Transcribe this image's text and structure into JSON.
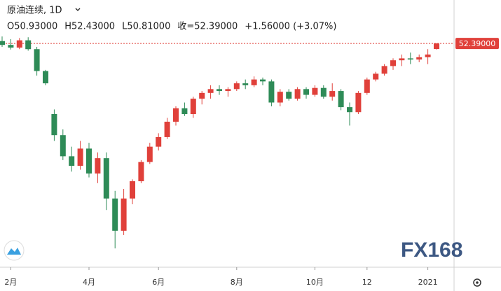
{
  "chart_data": {
    "type": "candlestick",
    "title": "原油连续, 1D",
    "header_values": [
      "O50.93000",
      "H52.43000",
      "L50.81000",
      "收=52.39000",
      "+1.56000 (+3.07%)"
    ],
    "last_price": {
      "value": 52.39,
      "label": "52.39000"
    },
    "watermark": "FX168",
    "up_color": "#e0403a",
    "down_color": "#2e8b57",
    "ylim": [
      -5.9,
      63.7
    ],
    "categories": [
      null,
      "2月",
      null,
      null,
      null,
      null,
      null,
      null,
      null,
      null,
      "4月",
      null,
      null,
      null,
      null,
      null,
      null,
      null,
      "6月",
      null,
      null,
      null,
      null,
      null,
      null,
      null,
      null,
      "8月",
      null,
      null,
      null,
      null,
      null,
      null,
      null,
      null,
      "10月",
      null,
      null,
      null,
      null,
      null,
      "12",
      null,
      null,
      null,
      null,
      null,
      null,
      "2021",
      null
    ],
    "open": [
      53.0,
      52.0,
      51.3,
      53.2,
      50.9,
      45.2,
      34.0,
      28.5,
      23.0,
      20.5,
      25.0,
      18.5,
      22.5,
      12.0,
      3.6,
      12.0,
      16.5,
      21.5,
      25.5,
      28.0,
      32.0,
      35.5,
      34.0,
      38.0,
      39.5,
      40.5,
      40.0,
      40.5,
      42.0,
      41.5,
      43.0,
      42.5,
      37.0,
      39.8,
      38.0,
      40.5,
      39.0,
      40.8,
      38.5,
      40.0,
      35.8,
      34.5,
      39.5,
      43.0,
      44.5,
      46.5,
      48.0,
      48.5,
      48.2,
      48.8,
      50.93
    ],
    "high": [
      54.2,
      53.5,
      53.8,
      54.0,
      51.5,
      45.5,
      35.2,
      30.0,
      25.5,
      27.0,
      26.5,
      24.0,
      24.0,
      14.0,
      14.5,
      17.0,
      22.0,
      26.5,
      29.0,
      33.0,
      36.0,
      37.0,
      38.5,
      40.0,
      41.5,
      41.5,
      41.0,
      42.5,
      43.0,
      43.8,
      43.5,
      43.0,
      40.5,
      40.5,
      41.0,
      41.0,
      41.5,
      41.5,
      42.0,
      40.5,
      37.0,
      40.0,
      43.5,
      45.0,
      47.0,
      48.5,
      49.5,
      50.0,
      49.5,
      50.9,
      52.43
    ],
    "low": [
      51.5,
      50.8,
      50.9,
      50.5,
      44.0,
      41.5,
      27.0,
      22.0,
      19.0,
      19.5,
      17.5,
      16.0,
      9.0,
      -1.0,
      2.5,
      10.5,
      16.0,
      21.0,
      24.5,
      27.5,
      31.0,
      33.5,
      33.0,
      36.5,
      38.0,
      39.0,
      38.5,
      40.0,
      40.5,
      41.0,
      41.5,
      36.0,
      36.0,
      37.5,
      37.5,
      38.0,
      38.5,
      38.0,
      37.5,
      35.0,
      31.0,
      34.0,
      39.0,
      42.5,
      44.0,
      45.5,
      46.5,
      47.0,
      47.5,
      47.0,
      50.81
    ],
    "close": [
      52.0,
      51.3,
      53.2,
      50.9,
      45.2,
      42.0,
      28.5,
      23.0,
      20.5,
      25.0,
      18.5,
      22.5,
      12.0,
      3.6,
      12.0,
      16.5,
      21.5,
      25.5,
      28.0,
      32.0,
      35.5,
      34.0,
      38.0,
      39.5,
      40.5,
      40.0,
      40.5,
      42.0,
      41.5,
      43.0,
      42.5,
      37.0,
      39.8,
      38.0,
      40.5,
      39.0,
      40.8,
      38.5,
      40.0,
      35.8,
      34.5,
      39.5,
      43.0,
      44.5,
      46.5,
      48.0,
      48.5,
      48.2,
      48.8,
      49.5,
      52.39
    ]
  }
}
